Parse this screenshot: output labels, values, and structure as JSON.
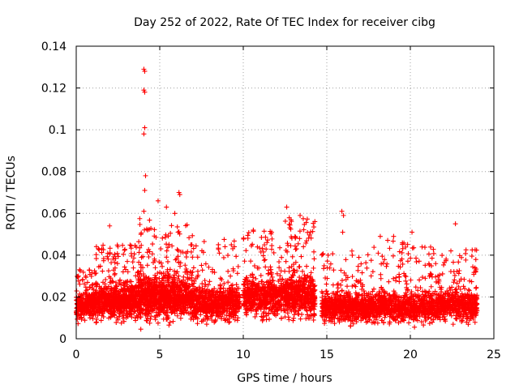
{
  "chart_data": {
    "type": "scatter",
    "title": "Day 252 of 2022, Rate Of TEC Index for receiver cibg",
    "xlabel": "GPS time / hours",
    "ylabel": "ROTI / TECUs",
    "xlim": [
      0,
      25
    ],
    "ylim": [
      0,
      0.14
    ],
    "xticks": [
      0,
      5,
      10,
      15,
      20,
      25
    ],
    "yticks": [
      0,
      0.02,
      0.04,
      0.06,
      0.08,
      0.1,
      0.12,
      0.14
    ],
    "grid": true,
    "marker": "+",
    "color": "#ff0000",
    "series": [
      {
        "name": "ROTI",
        "density_profile": [
          {
            "x_start": 0.0,
            "x_end": 1.0,
            "baseline": 0.016,
            "spread": 0.006,
            "max": 0.034,
            "count": 260
          },
          {
            "x_start": 1.0,
            "x_end": 3.7,
            "baseline": 0.018,
            "spread": 0.007,
            "max": 0.045,
            "count": 760
          },
          {
            "x_start": 3.7,
            "x_end": 4.4,
            "baseline": 0.02,
            "spread": 0.009,
            "max": 0.06,
            "count": 260
          },
          {
            "x_start": 4.4,
            "x_end": 7.0,
            "baseline": 0.02,
            "spread": 0.009,
            "max": 0.055,
            "count": 780
          },
          {
            "x_start": 7.0,
            "x_end": 9.8,
            "baseline": 0.017,
            "spread": 0.007,
            "max": 0.048,
            "count": 640
          },
          {
            "x_start": 10.0,
            "x_end": 12.3,
            "baseline": 0.02,
            "spread": 0.008,
            "max": 0.052,
            "count": 540
          },
          {
            "x_start": 12.3,
            "x_end": 14.3,
            "baseline": 0.021,
            "spread": 0.009,
            "max": 0.058,
            "count": 560
          },
          {
            "x_start": 14.7,
            "x_end": 17.5,
            "baseline": 0.015,
            "spread": 0.006,
            "max": 0.042,
            "count": 620
          },
          {
            "x_start": 17.5,
            "x_end": 21.5,
            "baseline": 0.015,
            "spread": 0.006,
            "max": 0.048,
            "count": 800
          },
          {
            "x_start": 21.5,
            "x_end": 24.0,
            "baseline": 0.016,
            "spread": 0.006,
            "max": 0.044,
            "count": 520
          }
        ],
        "notable_points": [
          {
            "x": 4.05,
            "y": 0.129
          },
          {
            "x": 4.1,
            "y": 0.128
          },
          {
            "x": 4.05,
            "y": 0.119
          },
          {
            "x": 4.1,
            "y": 0.118
          },
          {
            "x": 4.1,
            "y": 0.101
          },
          {
            "x": 4.05,
            "y": 0.098
          },
          {
            "x": 4.15,
            "y": 0.078
          },
          {
            "x": 4.1,
            "y": 0.071
          },
          {
            "x": 6.15,
            "y": 0.07
          },
          {
            "x": 6.2,
            "y": 0.069
          },
          {
            "x": 4.9,
            "y": 0.066
          },
          {
            "x": 5.4,
            "y": 0.063
          },
          {
            "x": 4.05,
            "y": 0.061
          },
          {
            "x": 5.9,
            "y": 0.06
          },
          {
            "x": 12.6,
            "y": 0.063
          },
          {
            "x": 13.4,
            "y": 0.059
          },
          {
            "x": 15.9,
            "y": 0.061
          },
          {
            "x": 16.0,
            "y": 0.059
          },
          {
            "x": 15.95,
            "y": 0.051
          },
          {
            "x": 22.7,
            "y": 0.055
          },
          {
            "x": 11.7,
            "y": 0.051
          },
          {
            "x": 10.6,
            "y": 0.052
          },
          {
            "x": 20.1,
            "y": 0.051
          },
          {
            "x": 18.2,
            "y": 0.049
          },
          {
            "x": 19.0,
            "y": 0.049
          },
          {
            "x": 2.0,
            "y": 0.054
          }
        ]
      }
    ]
  }
}
